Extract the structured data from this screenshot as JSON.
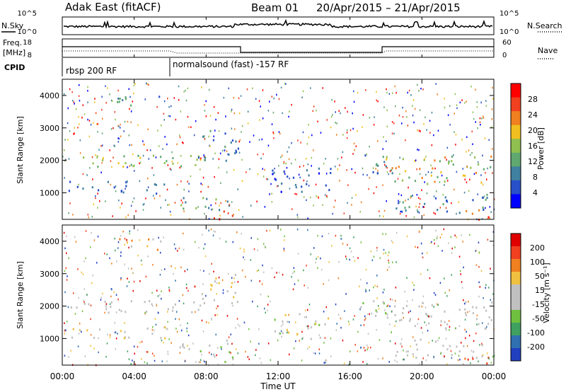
{
  "header": {
    "station": "Adak East (fitACF)",
    "beam": "Beam 01",
    "dates": "20/Apr/2015 – 21/Apr/2015"
  },
  "top_panels": {
    "nsky_label": "N.Sky",
    "nsearch_label": "N.Search",
    "freq_label_line1": "Freq.",
    "freq_label_line2": "[MHz]",
    "nave_label": "Nave",
    "cpid_label": "CPID",
    "nsky_ticks": [
      "10^5",
      "10^0"
    ],
    "nsearch_ticks": [
      "10^5",
      "10^0"
    ],
    "freq_ticks": [
      "18",
      "8"
    ],
    "nave_ticks": [
      "60",
      "0"
    ],
    "cpid_segments": [
      "rbsp 200 RF",
      "normalsound (fast) -157 RF"
    ]
  },
  "colors": {
    "power_scale": [
      "#0000ff",
      "#2850c8",
      "#4080a0",
      "#60a870",
      "#90c050",
      "#f0c020",
      "#f08020",
      "#f04020",
      "#ff0000"
    ],
    "velocity_scale": [
      "#2040c0",
      "#3070b0",
      "#40a060",
      "#70c040",
      "#c0c0c0",
      "#c0c0c0",
      "#f0c040",
      "#f08020",
      "#f04020",
      "#e00000"
    ]
  },
  "chart_data": [
    {
      "type": "heatmap",
      "title": "Power",
      "ylabel": "Slant Range [km]",
      "xlabel": "Time UT",
      "x_ticks": [
        "00:00",
        "04:00",
        "08:00",
        "12:00",
        "16:00",
        "20:00",
        "00:00"
      ],
      "y_ticks": [
        1000,
        2000,
        3000,
        4000
      ],
      "ylim": [
        180,
        4500
      ],
      "colorbar_label": "Power [dB]",
      "colorbar_ticks": [
        4,
        8,
        12,
        16,
        20,
        24,
        28
      ]
    },
    {
      "type": "heatmap",
      "title": "Velocity",
      "ylabel": "Slant Range [km]",
      "xlabel": "Time UT",
      "x_ticks": [
        "00:00",
        "04:00",
        "08:00",
        "12:00",
        "16:00",
        "20:00",
        "00:00"
      ],
      "y_ticks": [
        1000,
        2000,
        3000,
        4000
      ],
      "ylim": [
        180,
        4500
      ],
      "colorbar_label": "Velocity [m s⁻¹]",
      "colorbar_ticks": [
        200,
        100,
        50,
        15,
        -15,
        -50,
        -100,
        -200
      ]
    }
  ]
}
